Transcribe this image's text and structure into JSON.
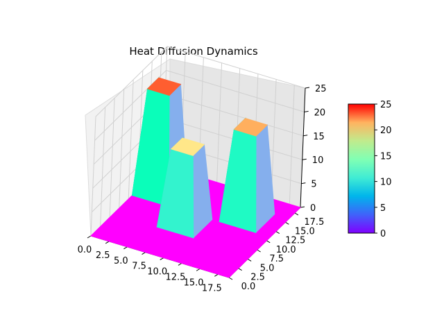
{
  "chart_data": {
    "type": "surface3d",
    "title": "Heat Diffusion Dynamics",
    "xlabel": "",
    "ylabel": "",
    "zlabel": "",
    "x_ticks": [
      "0.0",
      "2.5",
      "5.0",
      "7.5",
      "10.0",
      "12.5",
      "15.0",
      "17.5"
    ],
    "y_ticks": [
      "0.0",
      "2.5",
      "5.0",
      "7.5",
      "10.0",
      "12.5",
      "15.0",
      "17.5"
    ],
    "z_ticks": [
      "0",
      "5",
      "10",
      "15",
      "20",
      "25"
    ],
    "xlim": [
      0,
      19
    ],
    "ylim": [
      0,
      19
    ],
    "zlim": [
      0,
      25
    ],
    "grid": true,
    "colormap": "rainbow",
    "baseline_value": 0,
    "hot_blocks": [
      {
        "x": [
          1,
          4
        ],
        "y": [
          12,
          15
        ],
        "top_value": 22,
        "wall_value": 12
      },
      {
        "x": [
          7,
          10
        ],
        "y": [
          7,
          10
        ],
        "top_value": 16,
        "wall_value": 10
      },
      {
        "x": [
          13,
          16
        ],
        "y": [
          12,
          15
        ],
        "top_value": 19,
        "wall_value": 11
      }
    ],
    "colorbar": {
      "ticks": [
        "0",
        "5",
        "10",
        "15",
        "20",
        "25"
      ],
      "min": 0,
      "max": 25,
      "placement": "right"
    }
  }
}
